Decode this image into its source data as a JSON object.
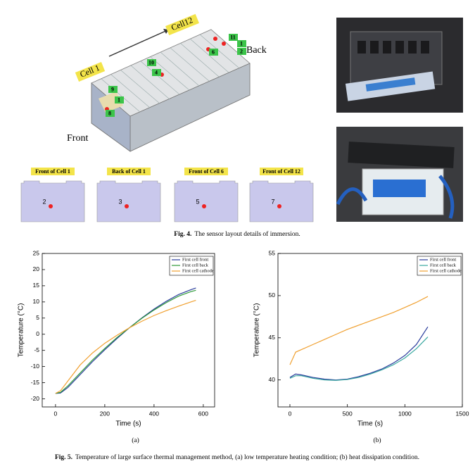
{
  "figure4": {
    "pack_labels": {
      "cell1": "Cell 1",
      "cell12": "Cell12",
      "back": "Back",
      "front": "Front"
    },
    "sensors": [
      "11",
      "1",
      "2",
      "6",
      "10",
      "4",
      "9",
      "1",
      "8"
    ],
    "panels": [
      {
        "title": "Front of Cell 1",
        "sensor": "2"
      },
      {
        "title": "Back of Cell 1",
        "sensor": "3"
      },
      {
        "title": "Front of Cell 6",
        "sensor": "5"
      },
      {
        "title": "Front of Cell 12",
        "sensor": "7"
      }
    ],
    "caption": {
      "label": "Fig. 4.",
      "text": "The sensor layout details of immersion."
    }
  },
  "chart_data": [
    {
      "type": "line",
      "caption": "(a)",
      "xlabel": "Time (s)",
      "ylabel": "Temperature (°C)",
      "x": [
        0,
        20,
        50,
        100,
        150,
        200,
        250,
        300,
        350,
        400,
        450,
        500,
        550,
        570
      ],
      "series": [
        {
          "name": "First cell front",
          "color": "#2a3c9c",
          "values": [
            -18.3,
            -18.2,
            -16.5,
            -12.5,
            -8.5,
            -4.8,
            -1.3,
            2,
            5,
            7.8,
            10.2,
            12.3,
            13.8,
            14.3
          ]
        },
        {
          "name": "First cell back",
          "color": "#2e9a3a",
          "values": [
            -18.3,
            -18,
            -16,
            -12,
            -8,
            -4.4,
            -1,
            2,
            4.9,
            7.5,
            9.8,
            11.8,
            13.2,
            13.6
          ]
        },
        {
          "name": "First cell cathode",
          "color": "#f0a030",
          "values": [
            -18.3,
            -17.5,
            -14.5,
            -9.5,
            -5.8,
            -2.8,
            -0.3,
            2,
            4,
            5.8,
            7.3,
            8.7,
            10,
            10.5
          ]
        }
      ],
      "xlim": [
        -54,
        646
      ],
      "xticks": [
        0,
        200,
        400,
        600
      ],
      "ylim": [
        -22.5,
        25
      ],
      "yticks": [
        -20,
        -15,
        -10,
        -5,
        0,
        5,
        10,
        15,
        20,
        25
      ],
      "legend": "upper right"
    },
    {
      "type": "line",
      "caption": "(b)",
      "xlabel": "Time (s)",
      "ylabel": "Temperature (°C)",
      "x": [
        0,
        50,
        100,
        200,
        300,
        400,
        500,
        600,
        700,
        800,
        900,
        1000,
        1100,
        1200
      ],
      "series": [
        {
          "name": "First cell front",
          "color": "#2a3c9c",
          "values": [
            40.3,
            40.7,
            40.6,
            40.3,
            40.1,
            40,
            40.1,
            40.4,
            40.8,
            41.3,
            42,
            42.9,
            44.2,
            46.3
          ]
        },
        {
          "name": "First cell back",
          "color": "#3aa8a0",
          "values": [
            40.2,
            40.5,
            40.5,
            40.2,
            40,
            39.95,
            40.05,
            40.3,
            40.7,
            41.2,
            41.8,
            42.6,
            43.7,
            45.1
          ]
        },
        {
          "name": "First cell cathode",
          "color": "#f0a030",
          "values": [
            41.8,
            43.3,
            43.6,
            44.2,
            44.8,
            45.4,
            46,
            46.5,
            47,
            47.5,
            48,
            48.6,
            49.2,
            49.9
          ]
        }
      ],
      "xlim": [
        -104,
        1500
      ],
      "xticks": [
        0,
        500,
        1000,
        1500
      ],
      "ylim": [
        36.8,
        55
      ],
      "yticks": [
        40,
        45,
        50,
        55
      ],
      "legend": "upper right"
    }
  ],
  "figure5_caption": {
    "label": "Fig. 5.",
    "text": "Temperature of large surface thermal management method, (a) low temperature heating condition; (b) heat dissipation condition."
  }
}
